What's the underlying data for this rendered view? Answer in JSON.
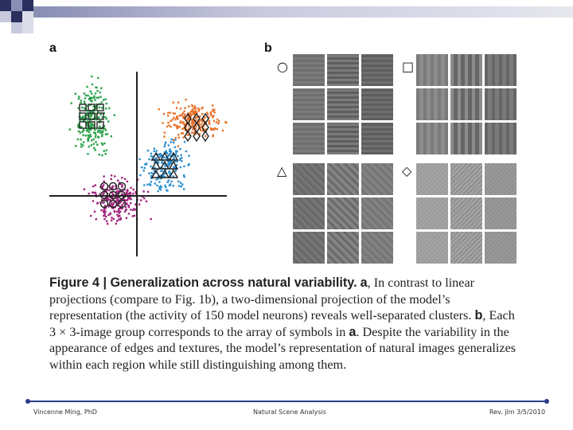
{
  "figure": {
    "panel_a_label": "a",
    "panel_b_label": "b",
    "symbols": {
      "circle": "○",
      "square": "□",
      "triangle": "△",
      "diamond": "◇"
    },
    "caption_title": "Figure 4 | Generalization across natural variability.",
    "caption_body_a": "a",
    "caption_text_1": ", In contrast to linear projections (compare to Fig. 1b), a two-dimensional projection of the model’s representation (the activity of 150 model neurons) reveals well-separated clusters.",
    "caption_body_b": "b",
    "caption_text_2": ", Each 3 × 3-image group corresponds to the array of symbols in",
    "caption_body_a2": "a",
    "caption_text_3": ". Despite the variability in the appearance of edges and textures, the model’s representation of natural images generalizes within each region while still distinguishing among them."
  },
  "footer": {
    "left": "Vincenne Ming, PhD",
    "center": "Natural Scene Analysis",
    "right": "Rev. jlm 3/5/2010"
  },
  "colors": {
    "green": "#2aa14a",
    "orange": "#e8722c",
    "blue": "#2b8fd0",
    "magenta": "#a0247e",
    "accent": "#2a3c84"
  }
}
